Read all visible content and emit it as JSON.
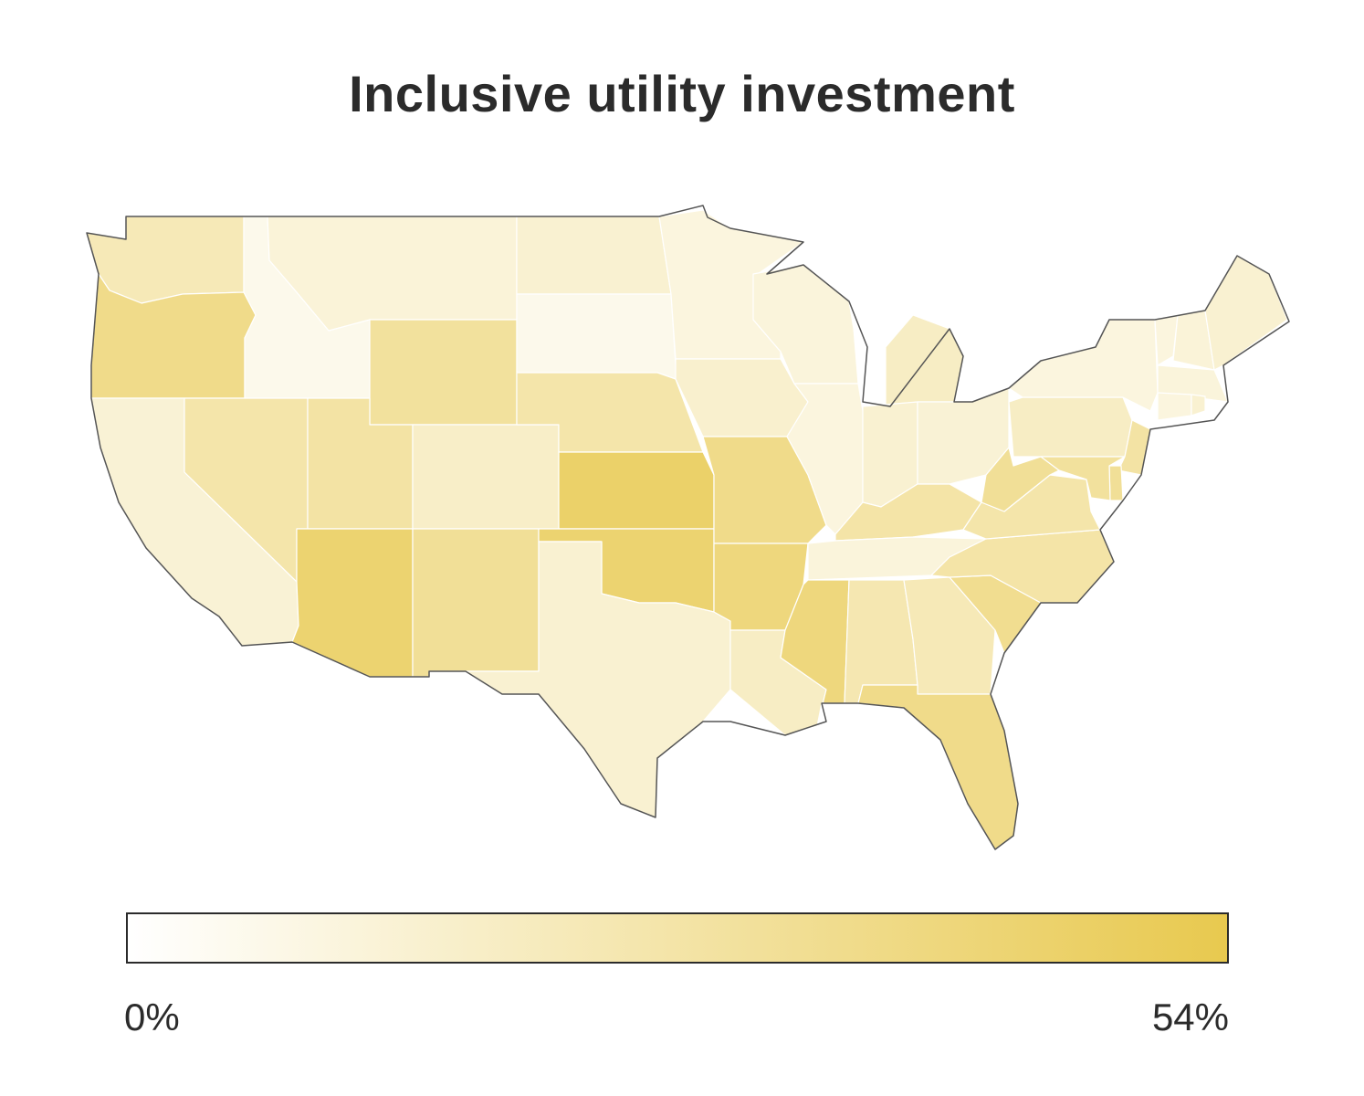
{
  "title": "Inclusive utility investment",
  "legend": {
    "min_label": "0%",
    "max_label": "54%",
    "min_value": 0,
    "max_value": 54,
    "low_color": "#ffffff",
    "high_color": "#e8c94f"
  },
  "colors": {
    "state_stroke": "#ffffff",
    "outline": "#555555"
  },
  "states": [
    {
      "abbr": "WA",
      "value": 22
    },
    {
      "abbr": "OR",
      "value": 36
    },
    {
      "abbr": "CA",
      "value": 13
    },
    {
      "abbr": "ID",
      "value": 6
    },
    {
      "abbr": "NV",
      "value": 26
    },
    {
      "abbr": "MT",
      "value": 12
    },
    {
      "abbr": "WY",
      "value": 30
    },
    {
      "abbr": "UT",
      "value": 28
    },
    {
      "abbr": "AZ",
      "value": 44
    },
    {
      "abbr": "CO",
      "value": 17
    },
    {
      "abbr": "NM",
      "value": 32
    },
    {
      "abbr": "ND",
      "value": 14
    },
    {
      "abbr": "SD",
      "value": 6
    },
    {
      "abbr": "NE",
      "value": 26
    },
    {
      "abbr": "KS",
      "value": 46
    },
    {
      "abbr": "OK",
      "value": 44
    },
    {
      "abbr": "TX",
      "value": 14
    },
    {
      "abbr": "MN",
      "value": 10
    },
    {
      "abbr": "IA",
      "value": 15
    },
    {
      "abbr": "MO",
      "value": 36
    },
    {
      "abbr": "AR",
      "value": 40
    },
    {
      "abbr": "LA",
      "value": 18
    },
    {
      "abbr": "WI",
      "value": 11
    },
    {
      "abbr": "IL",
      "value": 10
    },
    {
      "abbr": "MI",
      "value": 18
    },
    {
      "abbr": "IN",
      "value": 14
    },
    {
      "abbr": "OH",
      "value": 13
    },
    {
      "abbr": "KY",
      "value": 27
    },
    {
      "abbr": "TN",
      "value": 11
    },
    {
      "abbr": "MS",
      "value": 40
    },
    {
      "abbr": "AL",
      "value": 24
    },
    {
      "abbr": "GA",
      "value": 22
    },
    {
      "abbr": "FL",
      "value": 36
    },
    {
      "abbr": "SC",
      "value": 34
    },
    {
      "abbr": "NC",
      "value": 27
    },
    {
      "abbr": "VA",
      "value": 26
    },
    {
      "abbr": "WV",
      "value": 32
    },
    {
      "abbr": "PA",
      "value": 18
    },
    {
      "abbr": "NY",
      "value": 10
    },
    {
      "abbr": "VT",
      "value": 10
    },
    {
      "abbr": "NH",
      "value": 12
    },
    {
      "abbr": "ME",
      "value": 14
    },
    {
      "abbr": "MA",
      "value": 11
    },
    {
      "abbr": "CT",
      "value": 10
    },
    {
      "abbr": "RI",
      "value": 14
    },
    {
      "abbr": "NJ",
      "value": 28
    },
    {
      "abbr": "DE",
      "value": 32
    },
    {
      "abbr": "MD",
      "value": 30
    }
  ]
}
